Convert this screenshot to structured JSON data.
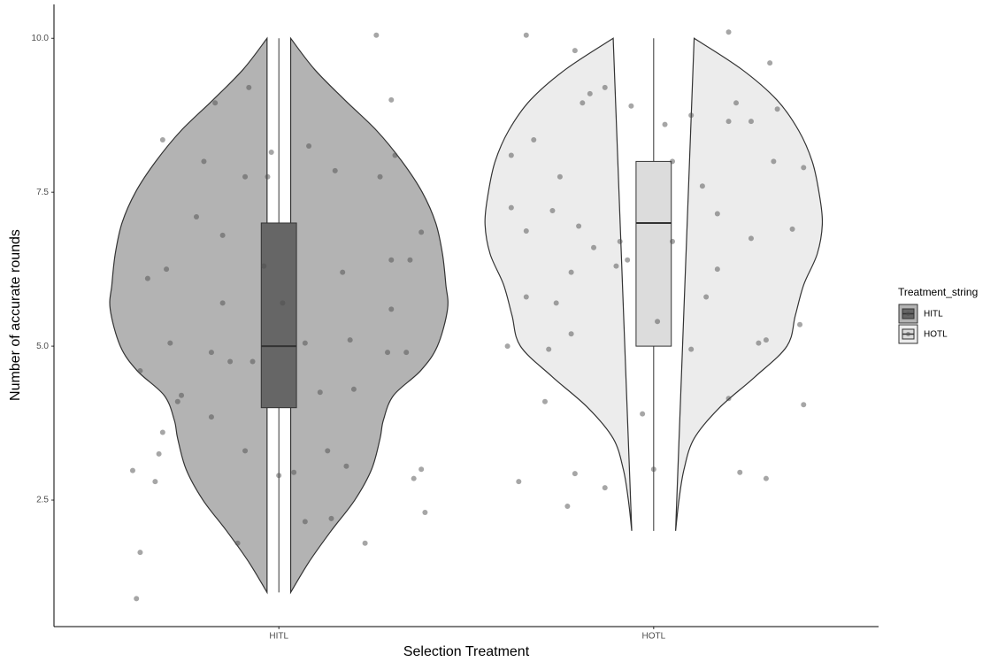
{
  "chart_data": {
    "type": "violin",
    "xlabel": "Selection Treatment",
    "ylabel": "Number of accurate rounds",
    "legend_title": "Treatment_string",
    "legend": "right",
    "categories": [
      "HITL",
      "HOTL"
    ],
    "xlim": [
      0.4,
      2.6
    ],
    "ylim": [
      0.445,
      10.55
    ],
    "yticks": [
      2.5,
      {
        "value": 5,
        "label": "5.0"
      },
      7.5,
      {
        "value": 10,
        "label": "10.0"
      }
    ],
    "grid": false,
    "series": [
      {
        "name": "HITL",
        "violin_color": "#b3b3b3",
        "box_color": "#666666",
        "point_color": "#4d4d4d",
        "violin": {
          "y": [
            10,
            9.5,
            9,
            8.5,
            8,
            7.5,
            7,
            6.5,
            6,
            5.6,
            5,
            4.6,
            4.2,
            3.8,
            3.5,
            3,
            2.5,
            2,
            1.5,
            1
          ],
          "density": [
            0.07,
            0.21,
            0.39,
            0.58,
            0.73,
            0.85,
            0.93,
            0.97,
            0.99,
            1.0,
            0.94,
            0.84,
            0.68,
            0.62,
            0.6,
            0.55,
            0.45,
            0.31,
            0.18,
            0.07
          ]
        },
        "box": {
          "min": 1,
          "q1": 4,
          "median": 5,
          "q3": 7,
          "max": 10
        },
        "points": {
          "x": [
            0.62,
            0.63,
            0.61,
            0.67,
            0.69,
            0.68,
            0.63,
            0.73,
            0.74,
            0.71,
            0.7,
            0.65,
            0.69,
            0.8,
            0.83,
            0.78,
            0.91,
            0.85,
            0.85,
            0.82,
            0.87,
            0.82,
            0.91,
            0.89,
            0.92,
            0.97,
            0.98,
            1.01,
            1.0,
            1.04,
            1.08,
            1.07,
            1.14,
            1.15,
            1.17,
            1.2,
            1.23,
            1.26,
            1.3,
            1.31,
            1.27,
            1.3,
            1.3,
            1.29,
            1.35,
            1.36,
            1.38,
            1.39,
            1.38,
            1.34,
            1.19,
            1.11,
            1.07,
            1.13,
            1.18,
            0.96,
            0.93
          ],
          "y": [
            0.9,
            1.65,
            2.98,
            2.8,
            3.6,
            3.25,
            4.6,
            4.1,
            4.2,
            5.05,
            6.25,
            6.1,
            8.35,
            8.0,
            8.95,
            7.1,
            7.75,
            6.8,
            5.7,
            4.9,
            4.75,
            3.85,
            3.3,
            1.8,
            9.2,
            7.75,
            8.15,
            5.7,
            2.9,
            2.95,
            8.25,
            2.15,
            2.2,
            7.85,
            6.2,
            4.3,
            1.8,
            10.05,
            9.0,
            8.1,
            7.75,
            6.4,
            5.6,
            4.9,
            6.4,
            2.85,
            3.0,
            2.3,
            6.85,
            4.9,
            5.1,
            4.25,
            5.05,
            3.3,
            3.05,
            6.3,
            4.75
          ]
        }
      },
      {
        "name": "HOTL",
        "violin_color": "#ececec",
        "box_color": "#dcdcdc",
        "point_color": "#4d4d4d",
        "violin": {
          "y": [
            10,
            9.5,
            9,
            8.5,
            8,
            7.5,
            7,
            6.5,
            6,
            5.5,
            5,
            4.5,
            4,
            3.5,
            3,
            2.5,
            2
          ],
          "density": [
            0.24,
            0.52,
            0.73,
            0.86,
            0.94,
            0.98,
            1.0,
            0.97,
            0.89,
            0.84,
            0.79,
            0.6,
            0.39,
            0.24,
            0.18,
            0.15,
            0.13
          ]
        },
        "box": {
          "min": 2,
          "q1": 5,
          "median": 7,
          "q3": 8,
          "max": 10
        },
        "points": {
          "x": [
            1.66,
            1.79,
            1.62,
            1.68,
            1.62,
            1.66,
            1.66,
            1.61,
            1.64,
            1.71,
            1.72,
            1.77,
            1.79,
            1.87,
            1.75,
            1.73,
            1.78,
            1.81,
            1.83,
            1.87,
            1.94,
            1.9,
            1.97,
            2.0,
            2.01,
            2.03,
            2.05,
            2.1,
            2.13,
            2.14,
            2.2,
            2.22,
            2.26,
            2.2,
            2.31,
            2.33,
            2.32,
            2.4,
            2.37,
            2.39,
            2.4,
            2.3,
            2.23,
            2.2,
            2.17,
            2.17,
            2.1,
            2.28,
            2.3,
            2.26,
            1.91,
            1.84,
            1.8,
            1.74,
            1.78,
            2.05,
            1.93
          ],
          "y": [
            10.05,
            9.8,
            8.1,
            8.35,
            7.25,
            6.87,
            5.8,
            5.0,
            2.8,
            4.1,
            4.95,
            2.4,
            2.93,
            2.7,
            7.75,
            7.2,
            6.2,
            8.95,
            9.1,
            9.2,
            8.9,
            6.3,
            3.9,
            3.0,
            5.4,
            8.6,
            8.0,
            8.75,
            7.6,
            5.8,
            8.65,
            8.95,
            8.65,
            10.1,
            9.6,
            8.85,
            8.0,
            7.9,
            6.9,
            5.35,
            4.05,
            2.85,
            2.95,
            4.15,
            6.25,
            7.15,
            4.95,
            5.05,
            5.1,
            6.75,
            6.7,
            6.6,
            6.95,
            5.7,
            5.2,
            6.7,
            6.4
          ]
        }
      }
    ]
  }
}
